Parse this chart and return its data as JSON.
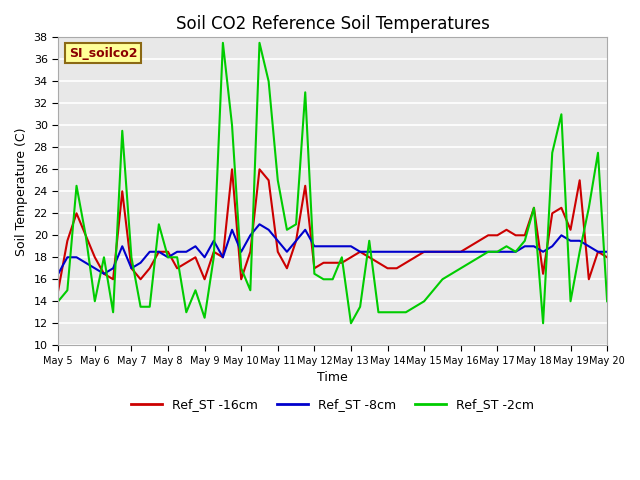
{
  "title": "Soil CO2 Reference Soil Temperatures",
  "xlabel": "Time",
  "ylabel": "Soil Temperature (C)",
  "ylim": [
    10,
    38
  ],
  "yticks": [
    10,
    12,
    14,
    16,
    18,
    20,
    22,
    24,
    26,
    28,
    30,
    32,
    34,
    36,
    38
  ],
  "plot_bg_color": "#e8e8e8",
  "series": {
    "Ref_ST -16cm": {
      "color": "#cc0000",
      "x": [
        0,
        1,
        2,
        3,
        4,
        5,
        6,
        7,
        8,
        9,
        10,
        11,
        12,
        13,
        14,
        15,
        16,
        17,
        18,
        19,
        20,
        21,
        22,
        23,
        24,
        25,
        26,
        27,
        28,
        29,
        30,
        31,
        32,
        33,
        34,
        35,
        36,
        37,
        38,
        39,
        40,
        41,
        42,
        43,
        44,
        45,
        46,
        47,
        48,
        49,
        50,
        51,
        52,
        53,
        54,
        55,
        56,
        57,
        58,
        59,
        60
      ],
      "y": [
        15.0,
        19.5,
        22.0,
        20.0,
        18.0,
        16.5,
        16.0,
        24.0,
        17.0,
        16.0,
        17.0,
        18.5,
        18.5,
        17.0,
        17.5,
        18.0,
        16.0,
        18.5,
        18.0,
        26.0,
        16.0,
        18.5,
        26.0,
        25.0,
        18.5,
        17.0,
        19.5,
        24.5,
        17.0,
        17.5,
        17.5,
        17.5,
        18.0,
        18.5,
        18.0,
        17.5,
        17.0,
        17.0,
        17.5,
        18.0,
        18.5,
        18.5,
        18.5,
        18.5,
        18.5,
        19.0,
        19.5,
        20.0,
        20.0,
        20.5,
        20.0,
        20.0,
        22.5,
        16.5,
        22.0,
        22.5,
        20.5,
        25.0,
        16.0,
        18.5,
        18.0
      ]
    },
    "Ref_ST -8cm": {
      "color": "#0000cc",
      "x": [
        0,
        1,
        2,
        3,
        4,
        5,
        6,
        7,
        8,
        9,
        10,
        11,
        12,
        13,
        14,
        15,
        16,
        17,
        18,
        19,
        20,
        21,
        22,
        23,
        24,
        25,
        26,
        27,
        28,
        29,
        30,
        31,
        32,
        33,
        34,
        35,
        36,
        37,
        38,
        39,
        40,
        41,
        42,
        43,
        44,
        45,
        46,
        47,
        48,
        49,
        50,
        51,
        52,
        53,
        54,
        55,
        56,
        57,
        58,
        59,
        60
      ],
      "y": [
        16.5,
        18.0,
        18.0,
        17.5,
        17.0,
        16.5,
        17.0,
        19.0,
        17.0,
        17.5,
        18.5,
        18.5,
        18.0,
        18.5,
        18.5,
        19.0,
        18.0,
        19.5,
        18.0,
        20.5,
        18.5,
        20.0,
        21.0,
        20.5,
        19.5,
        18.5,
        19.5,
        20.5,
        19.0,
        19.0,
        19.0,
        19.0,
        19.0,
        18.5,
        18.5,
        18.5,
        18.5,
        18.5,
        18.5,
        18.5,
        18.5,
        18.5,
        18.5,
        18.5,
        18.5,
        18.5,
        18.5,
        18.5,
        18.5,
        18.5,
        18.5,
        19.0,
        19.0,
        18.5,
        19.0,
        20.0,
        19.5,
        19.5,
        19.0,
        18.5,
        18.5
      ]
    },
    "Ref_ST -2cm": {
      "color": "#00cc00",
      "x": [
        0,
        1,
        2,
        3,
        4,
        5,
        6,
        7,
        8,
        9,
        10,
        11,
        12,
        13,
        14,
        15,
        16,
        17,
        18,
        19,
        20,
        21,
        22,
        23,
        24,
        25,
        26,
        27,
        28,
        29,
        30,
        31,
        32,
        33,
        34,
        35,
        36,
        37,
        38,
        39,
        40,
        41,
        42,
        43,
        44,
        45,
        46,
        47,
        48,
        49,
        50,
        51,
        52,
        53,
        54,
        55,
        56,
        57,
        58,
        59,
        60
      ],
      "y": [
        14.0,
        15.0,
        24.5,
        20.0,
        14.0,
        18.0,
        13.0,
        29.5,
        18.0,
        13.5,
        13.5,
        21.0,
        18.0,
        18.0,
        13.0,
        15.0,
        12.5,
        18.0,
        37.5,
        30.0,
        17.0,
        15.0,
        37.5,
        34.0,
        25.0,
        20.5,
        21.0,
        33.0,
        16.5,
        16.0,
        16.0,
        18.0,
        12.0,
        13.5,
        19.5,
        13.0,
        13.0,
        13.0,
        13.0,
        13.5,
        14.0,
        15.0,
        16.0,
        16.5,
        17.0,
        17.5,
        18.0,
        18.5,
        18.5,
        19.0,
        18.5,
        19.5,
        22.5,
        12.0,
        27.5,
        31.0,
        14.0,
        18.5,
        22.5,
        27.5,
        14.0
      ]
    }
  },
  "xtick_labels": [
    "May 5",
    "May 6",
    "May 7",
    "May 8",
    "May 9",
    "May 10",
    "May 11",
    "May 12",
    "May 13",
    "May 14",
    "May 15",
    "May 16",
    "May 17",
    "May 18",
    "May 19",
    "May 20"
  ],
  "xtick_positions": [
    0,
    4,
    8,
    12,
    16,
    20,
    24,
    28,
    32,
    36,
    40,
    44,
    48,
    52,
    56,
    60
  ],
  "station_label": "SI_soilco2",
  "station_label_color": "#8b0000",
  "station_box_facecolor": "#ffff99",
  "station_box_edgecolor": "#8b6914"
}
